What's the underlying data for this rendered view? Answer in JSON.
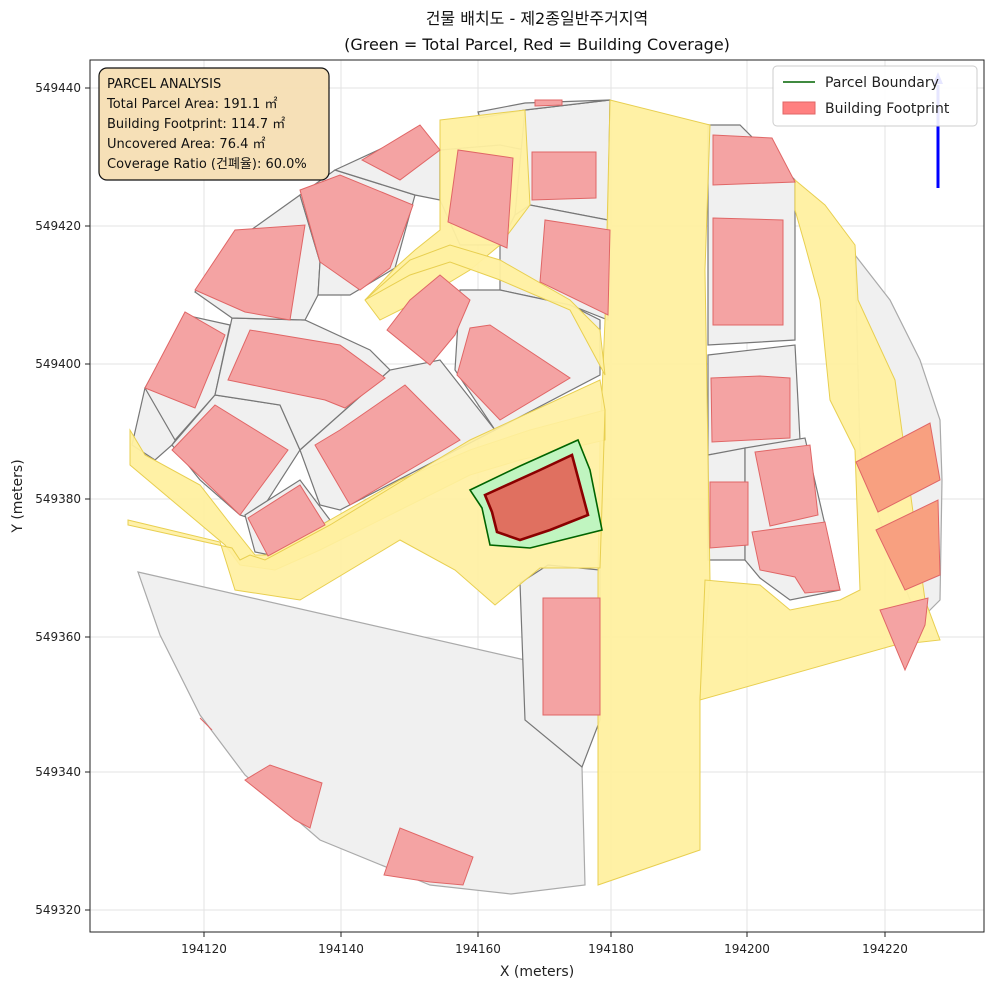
{
  "title_line1": "건물 배치도 - 제2종일반주거지역",
  "title_line2": "(Green = Total Parcel, Red = Building Coverage)",
  "xlabel": "X (meters)",
  "ylabel": "Y (meters)",
  "x_ticks": [
    "194120",
    "194140",
    "194160",
    "194180",
    "194200",
    "194220"
  ],
  "y_ticks": [
    "549440",
    "549420",
    "549400",
    "549380",
    "549360",
    "549340",
    "549320"
  ],
  "legend": {
    "placement": "top-right",
    "items": [
      {
        "label": "Parcel Boundary",
        "kind": "line",
        "color": "#006400"
      },
      {
        "label": "Building Footprint",
        "kind": "patch",
        "color": "#ff8080"
      }
    ]
  },
  "analysis_box": {
    "lines": [
      "PARCEL ANALYSIS",
      "Total Parcel Area: 191.1 ㎡",
      "Building Footprint: 114.7 ㎡",
      "Uncovered Area: 76.4 ㎡",
      "Coverage Ratio (건폐율): 60.0%"
    ]
  },
  "colors": {
    "road_fill": "#fff0a0",
    "parcel_fill": "#f0f0f0",
    "building_fill": "#f4a3a3",
    "target_parcel_fill": "#c0f5c0",
    "target_parcel_edge": "#006400",
    "target_building_fill": "#e07060",
    "target_building_edge": "#8b0000",
    "north_arrow": "#0000ff"
  },
  "chart_data": {
    "type": "map",
    "x_range": [
      194104,
      194235
    ],
    "y_range": [
      549316,
      549444
    ],
    "grid": true,
    "target_parcel": {
      "total_area_m2": 191.1,
      "building_footprint_m2": 114.7,
      "uncovered_m2": 76.4,
      "coverage_ratio_pct": 60.0
    }
  }
}
